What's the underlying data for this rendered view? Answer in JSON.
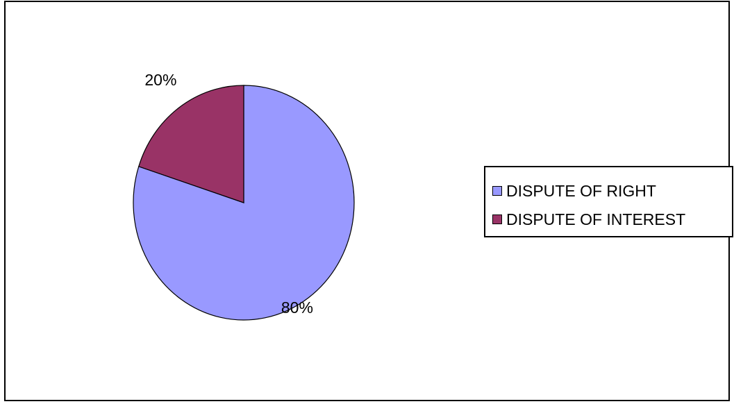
{
  "chart_data": {
    "type": "pie",
    "title": "",
    "categories": [
      "DISPUTE OF RIGHT",
      "DISPUTE OF INTEREST"
    ],
    "values": [
      80,
      20
    ],
    "data_labels": [
      "80%",
      "20%"
    ],
    "colors": [
      "#9999FF",
      "#993366"
    ],
    "legend_position": "right"
  },
  "legend": {
    "items": [
      {
        "label": "DISPUTE OF RIGHT",
        "color": "#9999FF"
      },
      {
        "label": "DISPUTE OF INTEREST",
        "color": "#993366"
      }
    ]
  }
}
